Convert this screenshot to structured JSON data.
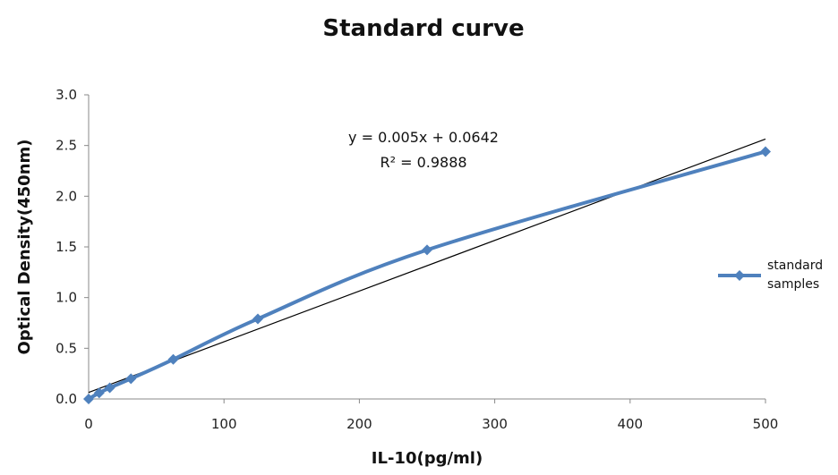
{
  "chart_data": {
    "type": "line",
    "title": "Standard curve",
    "xlabel": "IL-10(pg/ml)",
    "ylabel": "Optical Density(450nm)",
    "xlim": [
      0,
      500
    ],
    "ylim": [
      0,
      3.0
    ],
    "x_ticks": [
      "0",
      "100",
      "200",
      "300",
      "400",
      "500"
    ],
    "y_ticks": [
      "0.0",
      "0.5",
      "1.0",
      "1.5",
      "2.0",
      "2.5",
      "3.0"
    ],
    "grid": false,
    "legend_position": "right",
    "series": [
      {
        "name": "standard samples",
        "color": "#4f81bd",
        "marker": "diamond",
        "smooth": true,
        "points": [
          {
            "x": 0,
            "y": 0.0
          },
          {
            "x": 7.8,
            "y": 0.06
          },
          {
            "x": 15.6,
            "y": 0.11
          },
          {
            "x": 31.25,
            "y": 0.2
          },
          {
            "x": 62.5,
            "y": 0.39
          },
          {
            "x": 125,
            "y": 0.79
          },
          {
            "x": 250,
            "y": 1.47
          },
          {
            "x": 500,
            "y": 2.44
          }
        ]
      }
    ],
    "trendline": {
      "type": "linear",
      "slope": 0.005,
      "intercept": 0.0642,
      "color": "#000000",
      "equation": "y = 0.005x + 0.0642",
      "r_squared_label": "R² = 0.9888"
    },
    "legend_lines": [
      "standard",
      "samples"
    ]
  }
}
